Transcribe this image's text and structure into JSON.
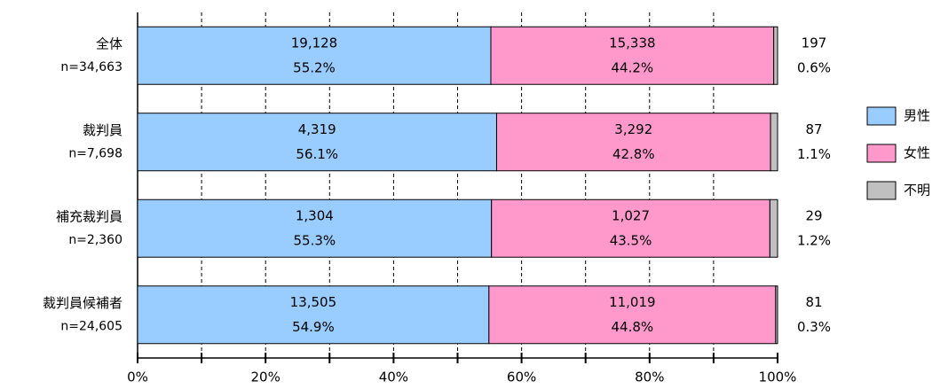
{
  "chart_data": {
    "type": "stacked_bar_horizontal",
    "categories": [
      "全体",
      "裁判員",
      "補充裁判員",
      "裁判員候補者"
    ],
    "sample_sizes": [
      "n=34,663",
      "n=7,698",
      "n=2,360",
      "n=24,605"
    ],
    "series": [
      {
        "name": "男性",
        "color": "#99ccff",
        "values": [
          55.2,
          56.1,
          55.3,
          54.9
        ],
        "value_labels": [
          "55.2%",
          "56.1%",
          "55.3%",
          "54.9%"
        ],
        "count_labels": [
          "19,128",
          "4,319",
          "1,304",
          "13,505"
        ]
      },
      {
        "name": "女性",
        "color": "#ff99cc",
        "values": [
          44.2,
          42.8,
          43.5,
          44.8
        ],
        "value_labels": [
          "44.2%",
          "42.8%",
          "43.5%",
          "44.8%"
        ],
        "count_labels": [
          "15,338",
          "3,292",
          "1,027",
          "11,019"
        ]
      },
      {
        "name": "不明",
        "color": "#c0c0c0",
        "values": [
          0.6,
          1.1,
          1.2,
          0.3
        ],
        "value_labels": [
          "0.6%",
          "1.1%",
          "1.2%",
          "0.3%"
        ],
        "count_labels": [
          "197",
          "87",
          "29",
          "81"
        ]
      }
    ],
    "xlim": [
      0,
      100
    ],
    "xticks": [
      {
        "value": 0,
        "label": "0%"
      },
      {
        "value": 20,
        "label": "20%"
      },
      {
        "value": 40,
        "label": "40%"
      },
      {
        "value": 60,
        "label": "60%"
      },
      {
        "value": 80,
        "label": "80%"
      },
      {
        "value": 100,
        "label": "100%"
      }
    ],
    "minor_xticks": [
      10,
      30,
      50,
      70,
      90
    ],
    "grid": true,
    "legend": "right"
  }
}
